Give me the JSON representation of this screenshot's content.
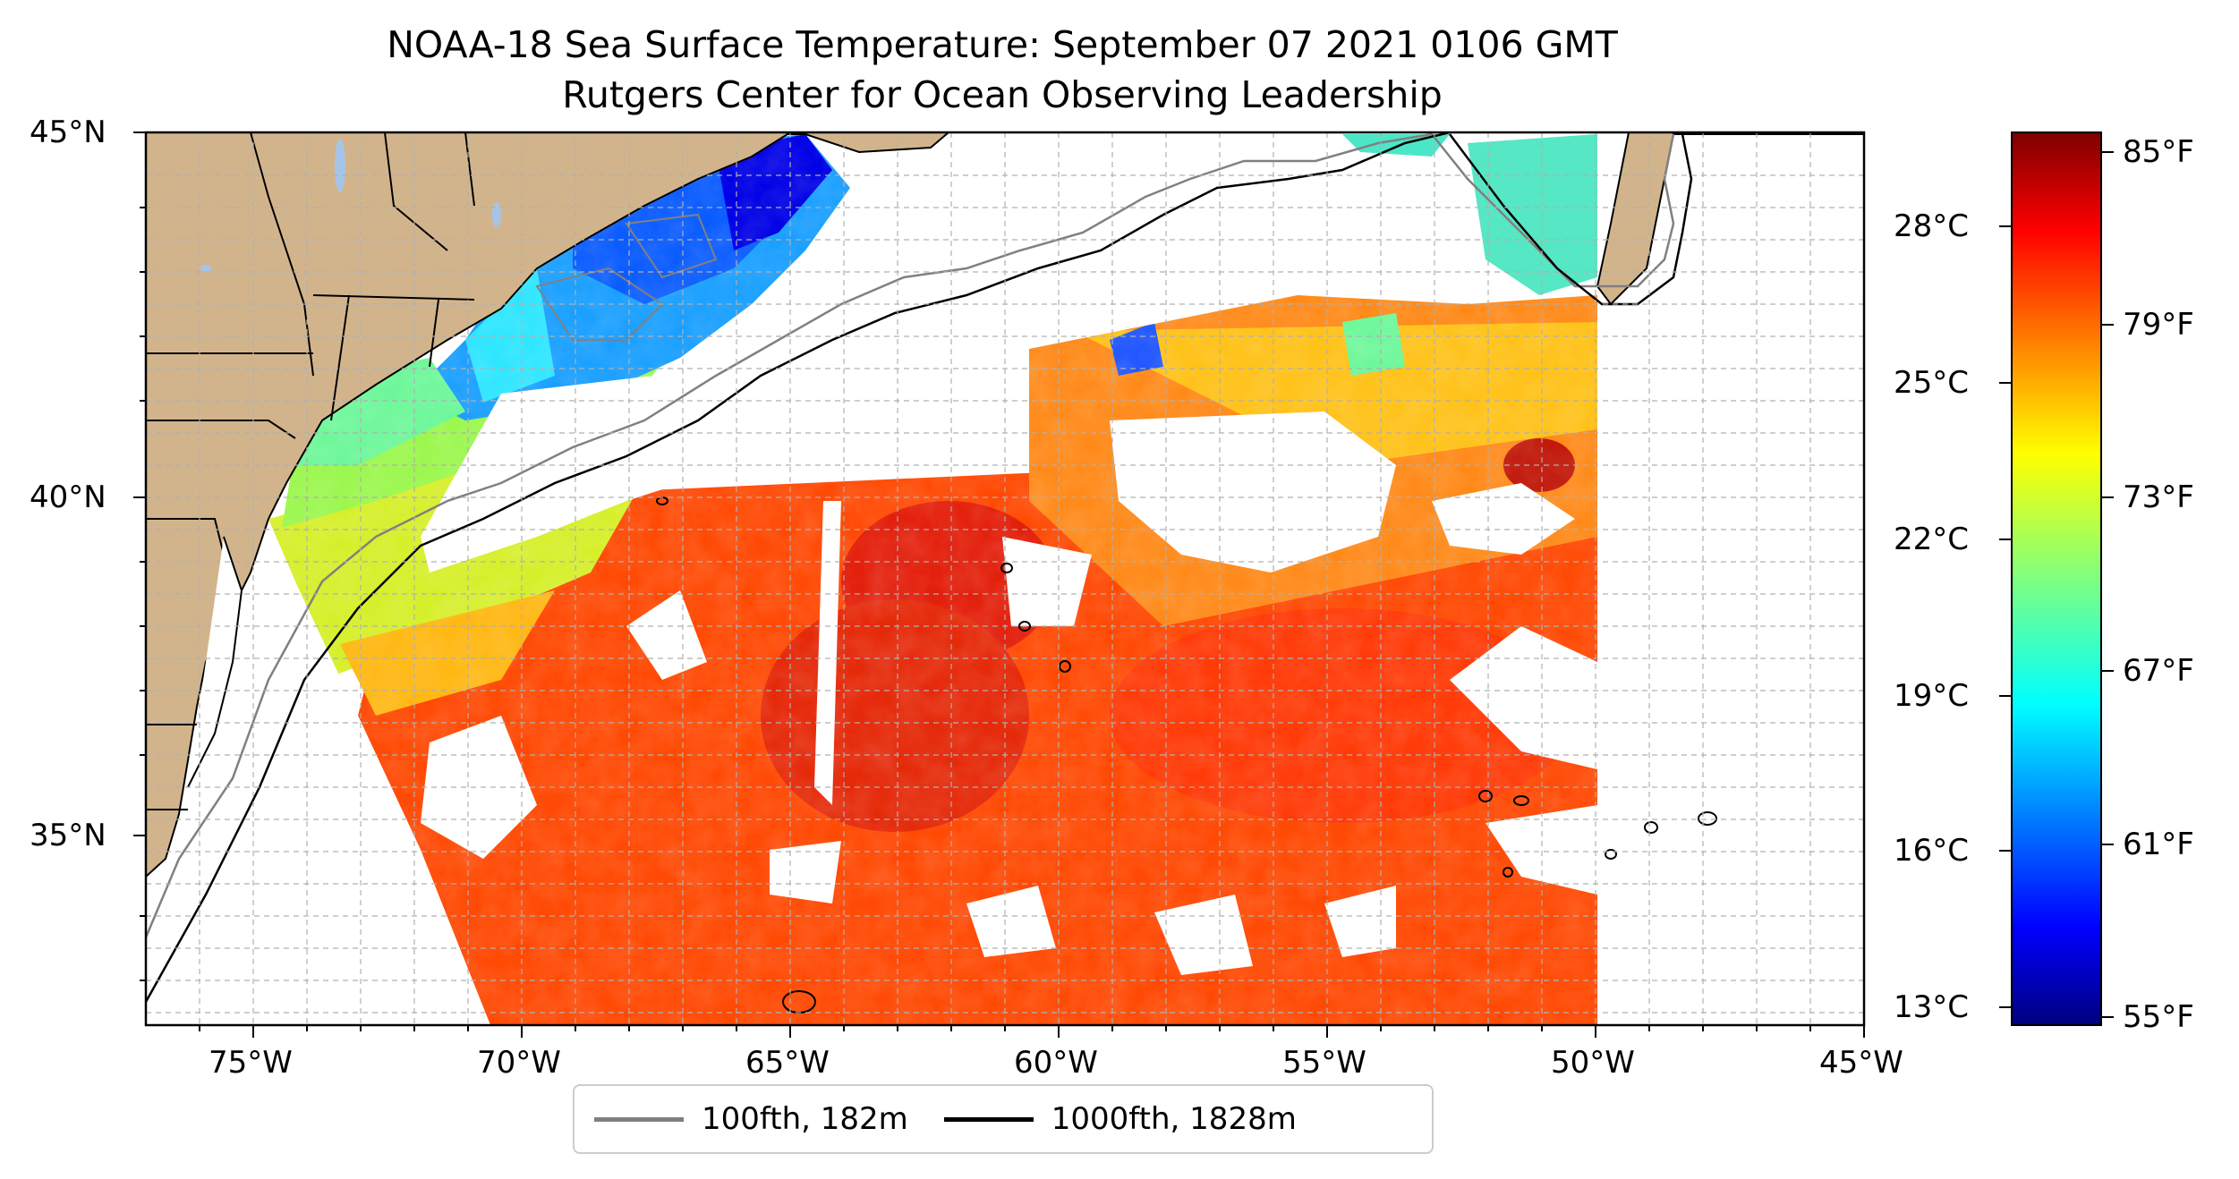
{
  "title": {
    "line1": "NOAA-18 Sea Surface Temperature: September 07 2021 0106 GMT",
    "line2": "Rutgers Center for Ocean Observing Leadership"
  },
  "map": {
    "lon_range": [
      -77,
      -45
    ],
    "lat_range": [
      32.5,
      45
    ],
    "lat_ticks": [
      {
        "value": 45,
        "label": "45°N"
      },
      {
        "value": 40,
        "label": "40°N"
      },
      {
        "value": 35,
        "label": "35°N"
      }
    ],
    "lon_ticks": [
      {
        "value": -75,
        "label": "75°W"
      },
      {
        "value": -70,
        "label": "70°W"
      },
      {
        "value": -65,
        "label": "65°W"
      },
      {
        "value": -60,
        "label": "60°W"
      },
      {
        "value": -55,
        "label": "55°W"
      },
      {
        "value": -50,
        "label": "50°W"
      },
      {
        "value": -45,
        "label": "45°W"
      }
    ],
    "land_color": "#d2b48c",
    "grid": true
  },
  "colorbar": {
    "colormap": "jet",
    "celsius_labels": [
      "28°C",
      "25°C",
      "22°C",
      "19°C",
      "16°C",
      "13°C"
    ],
    "fahrenheit_labels": [
      "85°F",
      "79°F",
      "73°F",
      "67°F",
      "61°F",
      "55°F"
    ]
  },
  "legend": {
    "items": [
      {
        "label": "100fth, 182m",
        "color": "#808080"
      },
      {
        "label": "1000fth, 1828m",
        "color": "#000000"
      }
    ]
  }
}
